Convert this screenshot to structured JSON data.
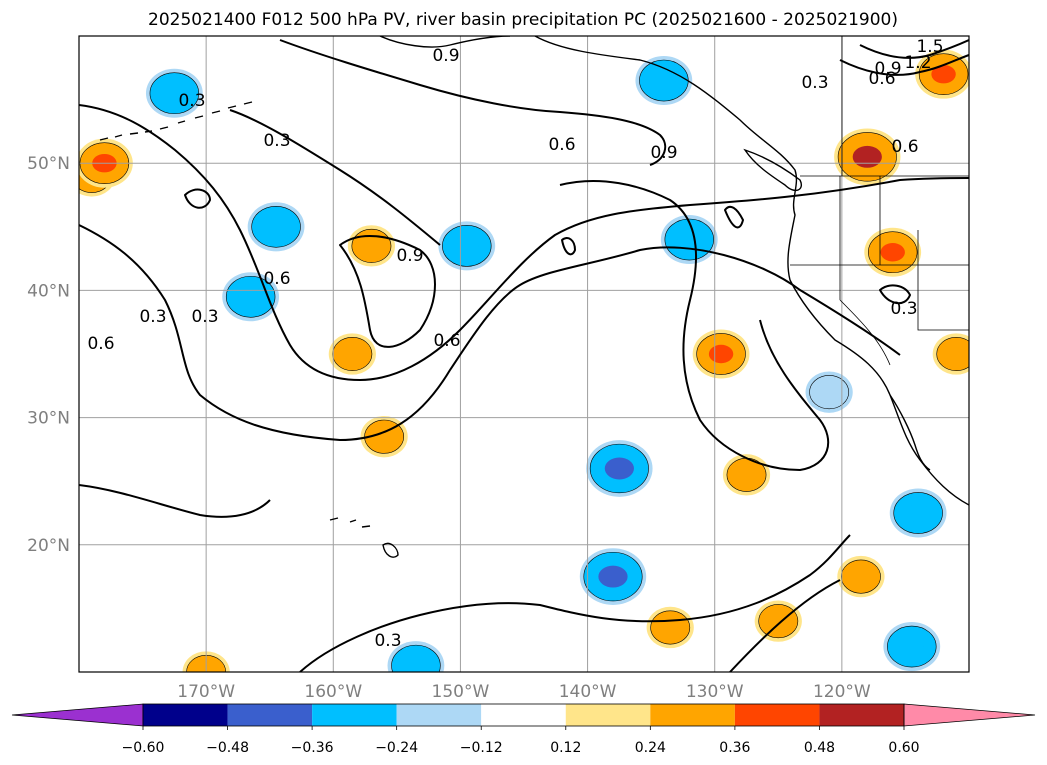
{
  "chart_data": {
    "type": "map-contour",
    "title": "2025021400 F012 500 hPa PV, river basin precipitation PC (2025021600 - 2025021900)",
    "lon_range": [
      -180,
      -110
    ],
    "lat_range": [
      10,
      60
    ],
    "x_ticks": [
      "170°W",
      "160°W",
      "150°W",
      "140°W",
      "130°W",
      "120°W"
    ],
    "y_ticks": [
      "50°N",
      "40°N",
      "30°N",
      "20°N"
    ],
    "gridlines": true,
    "pv_contour_levels": [
      0.3,
      0.6,
      0.9,
      1.2,
      1.5
    ],
    "contour_labels": [
      "0.3",
      "0.3",
      "0.3",
      "0.3",
      "0.3",
      "0.3",
      "0.3",
      "0.6",
      "0.6",
      "0.6",
      "0.6",
      "0.6",
      "0.6",
      "0.9",
      "0.9",
      "0.9",
      "0.9",
      "1.2",
      "1.5"
    ],
    "colorbar": {
      "orientation": "horizontal",
      "extend": "both",
      "tick_labels": [
        "−0.60",
        "−0.48",
        "−0.36",
        "−0.24",
        "−0.12",
        "0.12",
        "0.24",
        "0.36",
        "0.48",
        "0.60"
      ],
      "bin_colors": [
        "#9b30d0",
        "#00008b",
        "#3a5fcd",
        "#00bfff",
        "#add8f5",
        "#ffffff",
        "#ffe58a",
        "#ffa500",
        "#ff4500",
        "#b22222",
        "#ff8aa8"
      ]
    },
    "precip_anomalies": [
      {
        "lon": -179,
        "lat": 49,
        "value": 0.24
      },
      {
        "lon": -178,
        "lat": 50,
        "value": 0.36
      },
      {
        "lon": -157,
        "lat": 43.5,
        "value": 0.24
      },
      {
        "lon": -156,
        "lat": 28.5,
        "value": 0.24
      },
      {
        "lon": -158.5,
        "lat": 35,
        "value": 0.24
      },
      {
        "lon": -129.5,
        "lat": 35,
        "value": 0.36
      },
      {
        "lon": -118,
        "lat": 50.5,
        "value": 0.48
      },
      {
        "lon": -116,
        "lat": 43,
        "value": 0.36
      },
      {
        "lon": -112,
        "lat": 57,
        "value": 0.36
      },
      {
        "lon": -170,
        "lat": 10,
        "value": 0.24
      },
      {
        "lon": -118.5,
        "lat": 17.5,
        "value": 0.24
      },
      {
        "lon": -125,
        "lat": 14,
        "value": 0.24
      },
      {
        "lon": -133.5,
        "lat": 13.5,
        "value": 0.24
      },
      {
        "lon": -127.5,
        "lat": 25.5,
        "value": 0.24
      },
      {
        "lon": -111,
        "lat": 35,
        "value": 0.24
      },
      {
        "lon": -172.5,
        "lat": 55.5,
        "value": -0.36
      },
      {
        "lon": -164.5,
        "lat": 45,
        "value": -0.36
      },
      {
        "lon": -166.5,
        "lat": 39.5,
        "value": -0.36
      },
      {
        "lon": -149.5,
        "lat": 43.5,
        "value": -0.36
      },
      {
        "lon": -132,
        "lat": 44,
        "value": -0.36
      },
      {
        "lon": -137.5,
        "lat": 26,
        "value": -0.48
      },
      {
        "lon": -138,
        "lat": 17.5,
        "value": -0.48
      },
      {
        "lon": -114,
        "lat": 22.5,
        "value": -0.36
      },
      {
        "lon": -114.5,
        "lat": 12,
        "value": -0.36
      },
      {
        "lon": -153.5,
        "lat": 10.5,
        "value": -0.36
      },
      {
        "lon": -121,
        "lat": 32,
        "value": -0.24
      },
      {
        "lon": -134,
        "lat": 56.5,
        "value": -0.36
      }
    ]
  }
}
